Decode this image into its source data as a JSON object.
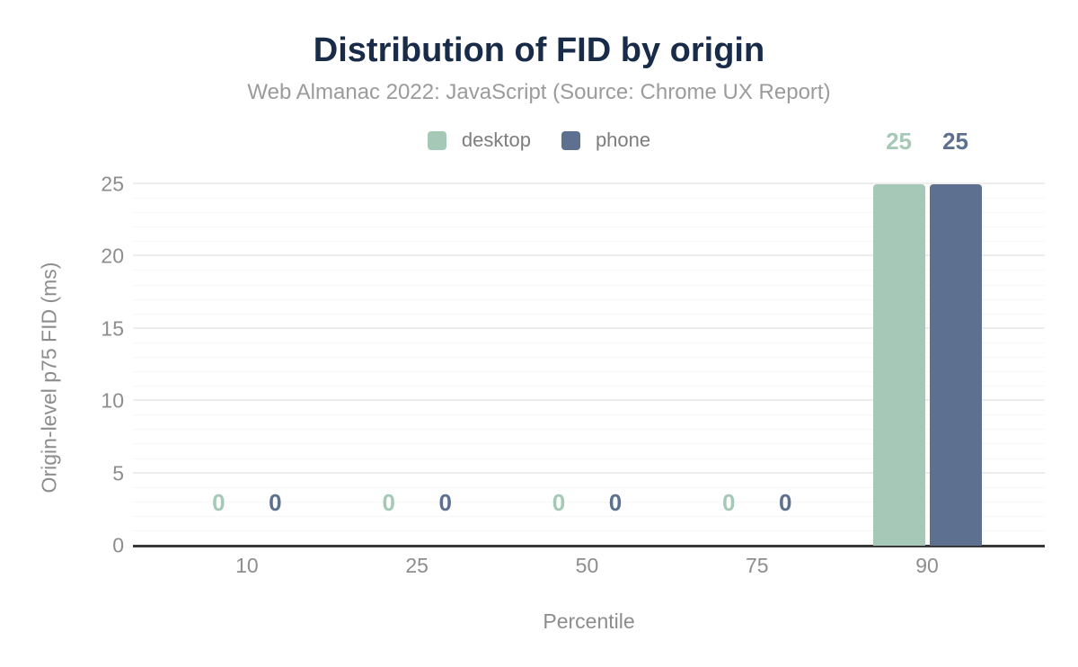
{
  "chart_data": {
    "type": "bar",
    "title": "Distribution of FID by origin",
    "subtitle": "Web Almanac 2022: JavaScript (Source: Chrome UX Report)",
    "xlabel": "Percentile",
    "ylabel": "Origin-level p75 FID (ms)",
    "categories": [
      "10",
      "25",
      "50",
      "75",
      "90"
    ],
    "series": [
      {
        "name": "desktop",
        "color": "#a6c9b7",
        "values": [
          0,
          0,
          0,
          0,
          25
        ]
      },
      {
        "name": "phone",
        "color": "#5d7090",
        "values": [
          0,
          0,
          0,
          0,
          25
        ]
      }
    ],
    "ylim": [
      0,
      25
    ],
    "yticks": [
      0,
      5,
      10,
      15,
      20,
      25
    ],
    "grid": {
      "orientation": "horizontal",
      "minor_step": 1,
      "major_step": 5
    },
    "legend_position": "top-center",
    "data_labels": true
  },
  "colors": {
    "title": "#182b49",
    "subtitle": "#9b9b9b",
    "tick_label": "#8d8d8d",
    "legend_label": "#7d7d7d",
    "axis_line": "#38383a",
    "grid_minor": "#f7f7f7",
    "grid_major": "#ededed",
    "background": "#ffffff"
  }
}
